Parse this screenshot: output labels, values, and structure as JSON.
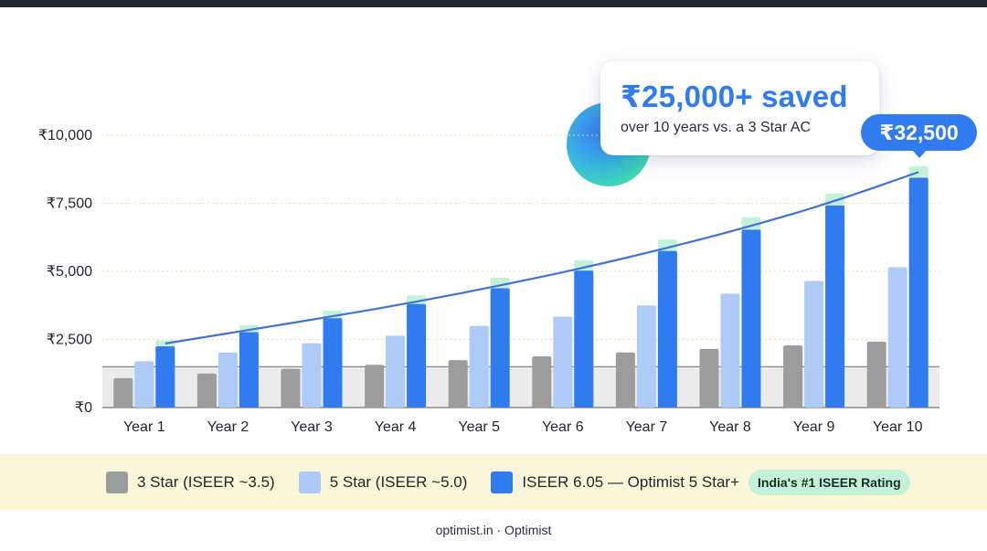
{
  "chart_data": {
    "type": "bar",
    "categories": [
      "Year 1",
      "Year 2",
      "Year 3",
      "Year 4",
      "Year 5",
      "Year 6",
      "Year 7",
      "Year 8",
      "Year 9",
      "Year 10"
    ],
    "series": [
      {
        "name": "3 Star (ISEER ~3.5)",
        "color": "#9c9c9c",
        "values": [
          1080,
          1250,
          1420,
          1570,
          1740,
          1880,
          2020,
          2150,
          2280,
          2420
        ]
      },
      {
        "name": "5 Star (ISEER ~5.0)",
        "color": "#aecbf8",
        "values": [
          1700,
          2020,
          2360,
          2640,
          3000,
          3340,
          3750,
          4180,
          4650,
          5150
        ]
      },
      {
        "name": "ISEER 6.05 — Optimist 5 Star+",
        "color": "#2f7bef",
        "values": [
          2250,
          2770,
          3280,
          3800,
          4380,
          5030,
          5750,
          6530,
          7420,
          8440
        ]
      }
    ],
    "bar_caps": [
      2470,
      3020,
      3560,
      4120,
      4770,
      5410,
      6170,
      6990,
      7860,
      8860
    ],
    "trend_line": [
      2350,
      2850,
      3350,
      3880,
      4480,
      5130,
      5860,
      6660,
      7570,
      8650
    ],
    "reference_line": 1500,
    "yticks": [
      "₹0",
      "₹2,500",
      "₹5,000",
      "₹7,500",
      "₹10,000"
    ],
    "ylim": [
      0,
      10000
    ],
    "grid": true,
    "legend_position": "bottom",
    "colors": {
      "cap": "#c4f2d9",
      "trend": "#3f73d9",
      "grid": "#e7dfa4",
      "band": "#ececec"
    }
  },
  "callout": {
    "title": "₹25,000+ saved",
    "subtitle": "over 10 years vs. a 3 Star AC"
  },
  "badge": {
    "value": "₹32,500"
  },
  "legend": {
    "items": [
      {
        "label": "3 Star (ISEER ~3.5)",
        "color": "#9c9c9c"
      },
      {
        "label": "5 Star (ISEER ~5.0)",
        "color": "#aecbf8"
      },
      {
        "label": "ISEER 6.05 — Optimist 5 Star+",
        "color": "#2f7bef"
      }
    ],
    "pill": "India's #1 ISEER Rating"
  },
  "footer": {
    "text": "optimist.in · Optimist"
  }
}
